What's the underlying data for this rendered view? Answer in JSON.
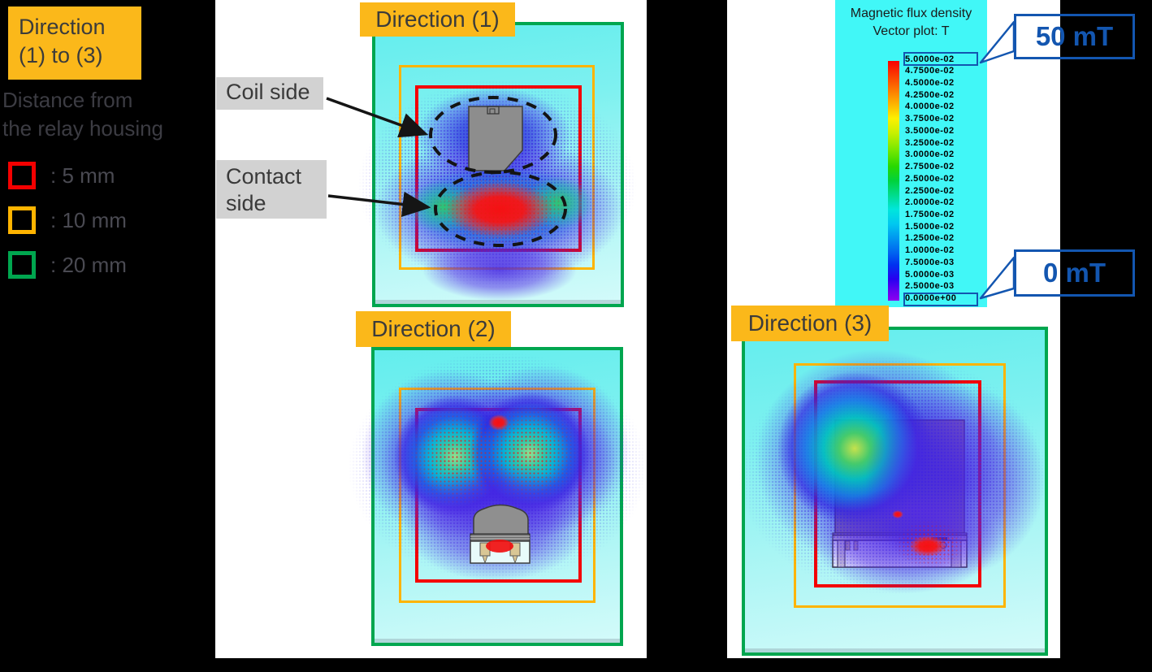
{
  "figure": {
    "description": "Magnetic flux density vector plot of a relay, three directions"
  },
  "colors": {
    "accent_orange": "#FBB81A",
    "border_red": "#F40000",
    "border_orange": "#FFB400",
    "border_green": "#00A64F",
    "callout_blue": "#1356B0",
    "legend_bg_cyan": "#41F7F7"
  },
  "left_legend": {
    "direction_box": {
      "line1": "Direction",
      "line2": "(1) to (3)"
    },
    "distance": {
      "line1": "Distance from",
      "line2": "the relay housing"
    },
    "items": [
      {
        "label": ": 5 mm",
        "color": "#F40000"
      },
      {
        "label": ": 10 mm",
        "color": "#FFB400"
      },
      {
        "label": ": 20 mm",
        "color": "#00A64F"
      }
    ]
  },
  "panels": {
    "direction1": {
      "title": "Direction (1)",
      "annotations": {
        "coil": "Coil side",
        "contact_line1": "Contact",
        "contact_line2": "side"
      }
    },
    "direction2": {
      "title": "Direction (2)"
    },
    "direction3": {
      "title": "Direction (3)"
    }
  },
  "colorbar": {
    "title_line1": "Magnetic flux density",
    "title_line2": "Vector plot: T",
    "ticks": [
      "5.0000e-02",
      "4.7500e-02",
      "4.5000e-02",
      "4.2500e-02",
      "4.0000e-02",
      "3.7500e-02",
      "3.5000e-02",
      "3.2500e-02",
      "3.0000e-02",
      "2.7500e-02",
      "2.5000e-02",
      "2.2500e-02",
      "2.0000e-02",
      "1.7500e-02",
      "1.5000e-02",
      "1.2500e-02",
      "1.0000e-02",
      "7.5000e-03",
      "5.0000e-03",
      "2.5000e-03",
      "0.0000e+00"
    ],
    "callout_max": "50 mT",
    "callout_min": "0 mT"
  }
}
